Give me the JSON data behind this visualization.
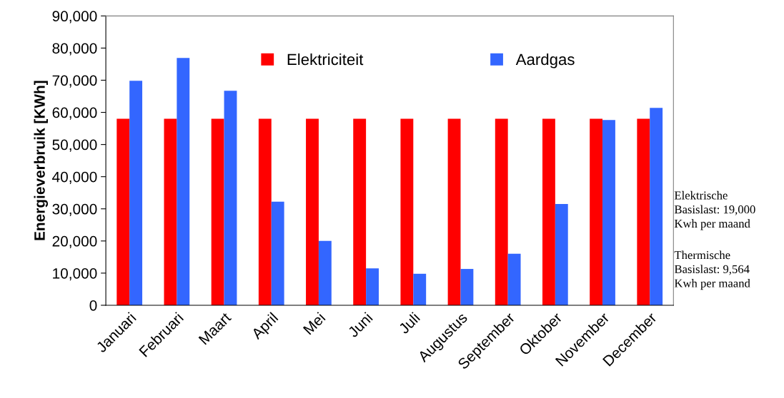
{
  "chart_data": {
    "type": "bar",
    "ylabel": "Energieverbruik [KWh]",
    "categories": [
      "Januari",
      "Februari",
      "Maart",
      "April",
      "Mei",
      "Juni",
      "Juli",
      "Augustus",
      "September",
      "Oktober",
      "November",
      "December"
    ],
    "series": [
      {
        "name": "Elektriciteit",
        "color": "#ff0000",
        "values": [
          58000,
          58000,
          58000,
          58000,
          58000,
          58000,
          58000,
          58000,
          58000,
          58000,
          58000,
          58000
        ]
      },
      {
        "name": "Aardgas",
        "color": "#3366ff",
        "values": [
          69800,
          76900,
          66700,
          32200,
          20000,
          11500,
          9800,
          11300,
          16000,
          31500,
          57600,
          61400
        ]
      }
    ],
    "ylim": [
      0,
      90000
    ],
    "yticks": [
      {
        "value": 0,
        "label": "0"
      },
      {
        "value": 10000,
        "label": "10,000"
      },
      {
        "value": 20000,
        "label": "20,000"
      },
      {
        "value": 30000,
        "label": "30,000"
      },
      {
        "value": 40000,
        "label": "40,000"
      },
      {
        "value": 50000,
        "label": "50,000"
      },
      {
        "value": 60000,
        "label": "60,000"
      },
      {
        "value": 70000,
        "label": "70,000"
      },
      {
        "value": 80000,
        "label": "80,000"
      },
      {
        "value": 90000,
        "label": "90,000"
      }
    ],
    "grid": false,
    "legend": "top",
    "annotations": [
      "Elektrische\nBasislast: 19,000\nKwh per maand",
      "Thermische\nBasislast: 9,564\nKwh per maand"
    ]
  }
}
